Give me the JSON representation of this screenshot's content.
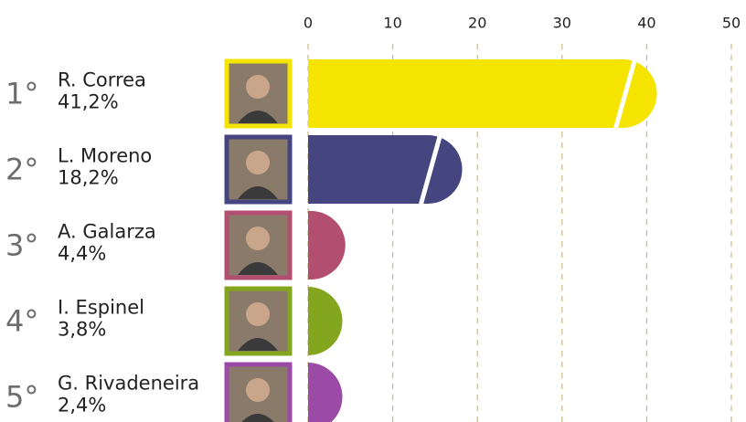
{
  "chart_data": {
    "type": "bar",
    "orientation": "horizontal",
    "ranks": [
      "1°",
      "2°",
      "3°",
      "4°",
      "5°"
    ],
    "categories": [
      "R. Correa",
      "L. Moreno",
      "A. Galarza",
      "I. Espinel",
      "G. Rivadeneira"
    ],
    "values": [
      41.2,
      18.2,
      4.4,
      3.8,
      2.4
    ],
    "value_labels": [
      "41,2%",
      "18,2%",
      "4,4%",
      "3,8%",
      "2,4%"
    ],
    "colors": [
      "#f5e400",
      "#454580",
      "#b24e70",
      "#84a61f",
      "#9b4aa8"
    ],
    "xlim": [
      0,
      50
    ],
    "xticks": [
      0,
      10,
      20,
      30,
      40,
      50
    ],
    "grid": true
  }
}
